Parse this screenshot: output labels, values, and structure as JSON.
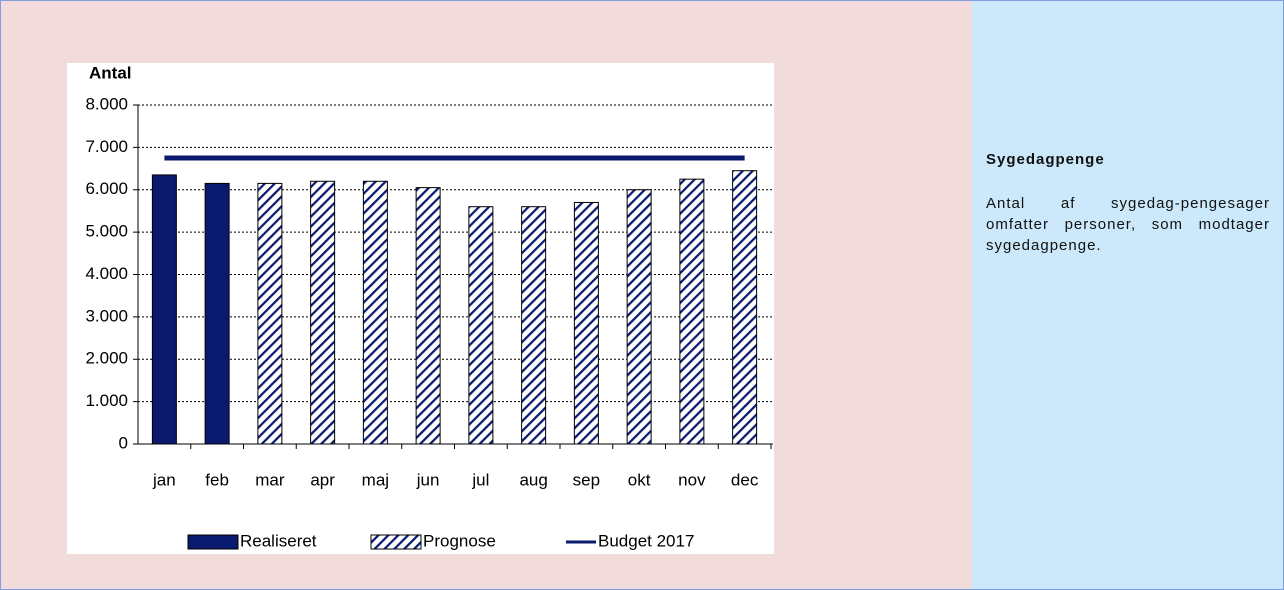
{
  "chart_data": {
    "type": "bar",
    "y_label": "Antal",
    "categories": [
      "jan",
      "feb",
      "mar",
      "apr",
      "maj",
      "jun",
      "jul",
      "aug",
      "sep",
      "okt",
      "nov",
      "dec"
    ],
    "series": [
      {
        "name": "Realiseret",
        "color": "#0a1a6e",
        "values": [
          6350,
          6150,
          null,
          null,
          null,
          null,
          null,
          null,
          null,
          null,
          null,
          null
        ]
      },
      {
        "name": "Prognose",
        "color": "#0a1a6e",
        "pattern": "hatch",
        "values": [
          null,
          null,
          6150,
          6200,
          6200,
          6050,
          5600,
          5600,
          5700,
          6000,
          6250,
          6450
        ]
      },
      {
        "name": "Budget 2017",
        "color": "#0a1a6e",
        "type": "line",
        "values": [
          6750,
          6750,
          6750,
          6750,
          6750,
          6750,
          6750,
          6750,
          6750,
          6750,
          6750,
          6750
        ]
      }
    ],
    "ylim": [
      0,
      8000
    ],
    "yticks": [
      0,
      {
        "value": 1000,
        "label": "1.000"
      },
      {
        "value": 2000,
        "label": "2.000"
      },
      {
        "value": 3000,
        "label": "3.000"
      },
      {
        "value": 4000,
        "label": "4.000"
      },
      {
        "value": 5000,
        "label": "5.000"
      },
      {
        "value": 6000,
        "label": "6.000"
      },
      {
        "value": 7000,
        "label": "7.000"
      },
      {
        "value": 8000,
        "label": "8.000"
      }
    ],
    "grid": true
  },
  "sidebar": {
    "title": "Sygedagpenge",
    "text": "Antal af sygedag-pengesager omfatter personer, som modtager sygedagpenge."
  }
}
